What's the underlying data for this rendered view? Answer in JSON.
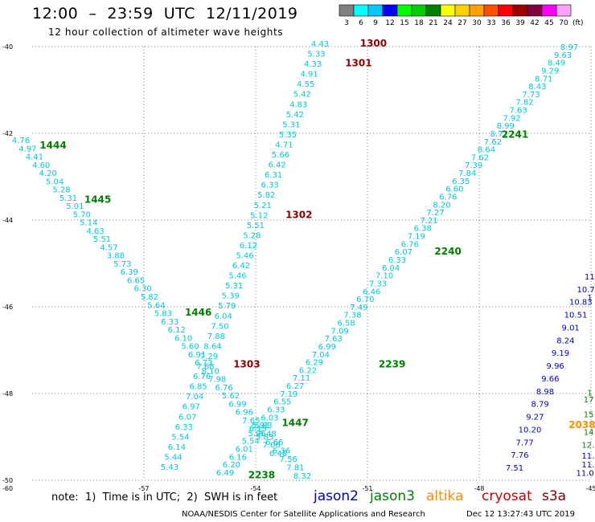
{
  "header": {
    "title": "12:00  –  23:59  UTC  12/11/2019",
    "subtitle": "12 hour collection of altimeter wave heights"
  },
  "scale": {
    "unit": "(ft)",
    "bins": [
      {
        "label": "3",
        "color": "#808080"
      },
      {
        "label": "6",
        "color": "#00ffff"
      },
      {
        "label": "9",
        "color": "#00c8ff"
      },
      {
        "label": "12",
        "color": "#0000ff"
      },
      {
        "label": "15",
        "color": "#00ff00"
      },
      {
        "label": "18",
        "color": "#00d000"
      },
      {
        "label": "21",
        "color": "#008000"
      },
      {
        "label": "24",
        "color": "#ffff00"
      },
      {
        "label": "27",
        "color": "#ffd000"
      },
      {
        "label": "30",
        "color": "#ffa000"
      },
      {
        "label": "33",
        "color": "#ff5000"
      },
      {
        "label": "36",
        "color": "#ff0000"
      },
      {
        "label": "39",
        "color": "#a00000"
      },
      {
        "label": "42",
        "color": "#800040"
      },
      {
        "label": "45",
        "color": "#ff00ff"
      },
      {
        "label": "70",
        "color": "#ffa0ff"
      }
    ]
  },
  "axes": {
    "lat_labels": [
      "-40",
      "-42",
      "-44",
      "-46",
      "-48",
      "-50"
    ],
    "lon_labels": [
      "-57",
      "-54",
      "-51",
      "-48",
      "-45"
    ],
    "corner_label": "-60"
  },
  "colors": {
    "jason2": "#0000cd",
    "jason3": "#008000",
    "altika": "#ff8c00",
    "cryosat": "#cc0000",
    "s3a": "#800000",
    "wave_cyan": "#00c8d8",
    "wave_blue": "#0000cd",
    "time_maroon": "#8b0000",
    "time_green": "#008000",
    "time_orange": "#ff8c00"
  },
  "tracks": [
    {
      "name": "track-1300-1303",
      "color": "wave_cyan",
      "start": [
        398,
        58
      ],
      "end": [
        211,
        585
      ],
      "values": [
        "4.43",
        "5.33",
        "4.33",
        "4.91",
        "4.55",
        "5.42",
        "4.83",
        "5.42",
        "5.31",
        "5.35",
        "4.71",
        "5.66",
        "6.42",
        "6.31",
        "6.33",
        "5.82",
        "5.21",
        "5.12",
        "5.51",
        "5.28",
        "6.12",
        "5.46",
        "6.42",
        "5.46",
        "5.31",
        "5.39",
        "5.79",
        "6.04",
        "7.50",
        "7.88",
        "8.64",
        "7.29",
        "7.68",
        "6.76",
        "6.85",
        "7.04",
        "6.97",
        "6.07",
        "6.33",
        "5.54",
        "6.14",
        "5.44",
        "5.43"
      ]
    },
    {
      "name": "track-1444-1447",
      "color": "wave_cyan",
      "start": [
        26,
        178
      ],
      "end": [
        346,
        568
      ],
      "values": [
        "4.76",
        "4.97",
        "4.41",
        "4.60",
        "4.20",
        "5.04",
        "5.28",
        "5.31",
        "5.01",
        "5.70",
        "5.14",
        "4.63",
        "5.51",
        "4.57",
        "3.88",
        "5.73",
        "6.39",
        "6.65",
        "6.30",
        "5.82",
        "5.64",
        "5.83",
        "6.33",
        "6.12",
        "6.10",
        "5.60",
        "6.91",
        "6.73",
        "8.10",
        "7.98",
        "6.76",
        "5.62",
        "6.99",
        "6.96",
        "7.65",
        "6.15",
        "5.83",
        "7.06",
        "6.48"
      ]
    },
    {
      "name": "track-2238-2241",
      "color": "wave_cyan",
      "start": [
        708,
        62
      ],
      "end": [
        280,
        592
      ],
      "values": [
        "8.97",
        "9.63",
        "8.49",
        "9.29",
        "8.71",
        "8.43",
        "7.73",
        "7.82",
        "7.63",
        "7.92",
        "8.99",
        "8.71",
        "7.62",
        "8.64",
        "7.62",
        "7.39",
        "7.84",
        "6.35",
        "6.60",
        "6.76",
        "8.20",
        "7.27",
        "7.21",
        "6.38",
        "7.19",
        "6.76",
        "6.07",
        "6.33",
        "6.04",
        "7.10",
        "7.33",
        "6.46",
        "6.70",
        "7.49",
        "7.38",
        "6.58",
        "7.09",
        "7.63",
        "6.99",
        "7.04",
        "6.29",
        "6.22",
        "7.11",
        "6.27",
        "7.19",
        "6.55",
        "6.33",
        "6.03",
        "5.83",
        "5.96",
        "5.54",
        "6.01",
        "6.16",
        "6.20",
        "6.49"
      ]
    },
    {
      "name": "track-1303-tail",
      "color": "wave_cyan",
      "start": [
        324,
        533
      ],
      "end": [
        376,
        596
      ],
      "values": [
        "5.93",
        "6.48",
        "6.66",
        "6.36",
        "7.56",
        "7.81",
        "8.32"
      ]
    },
    {
      "name": "track-2039",
      "color": "wave_blue",
      "start": [
        735,
        348
      ],
      "end": [
        640,
        586
      ],
      "values": [
        "11.",
        "10.7",
        "10.83",
        "10.51",
        "9.01",
        "8.24",
        "9.19",
        "9.96",
        "9.66",
        "8.98",
        "8.79",
        "9.27",
        "10.20",
        "7.77",
        "7.76",
        "7.51"
      ]
    }
  ],
  "pass_times": [
    {
      "label": "1300",
      "color": "time_maroon",
      "lon": -51.2,
      "lat": -40.0
    },
    {
      "label": "1301",
      "color": "time_maroon",
      "lon": -51.6,
      "lat": -40.45
    },
    {
      "label": "1302",
      "color": "time_maroon",
      "lon": -53.2,
      "lat": -43.95
    },
    {
      "label": "1303",
      "color": "time_maroon",
      "lon": -54.6,
      "lat": -47.4
    },
    {
      "label": "1444",
      "color": "time_green",
      "lon": -59.8,
      "lat": -42.35
    },
    {
      "label": "1445",
      "color": "time_green",
      "lon": -58.6,
      "lat": -43.6
    },
    {
      "label": "1446",
      "color": "time_green",
      "lon": -55.9,
      "lat": -46.2
    },
    {
      "label": "1447",
      "color": "time_green",
      "lon": -53.3,
      "lat": -48.75
    },
    {
      "label": "2238",
      "color": "time_green",
      "lon": -54.2,
      "lat": -49.95
    },
    {
      "label": "2239",
      "color": "time_green",
      "lon": -50.7,
      "lat": -47.4
    },
    {
      "label": "2240",
      "color": "time_green",
      "lon": -49.2,
      "lat": -44.8
    },
    {
      "label": "2241",
      "color": "time_green",
      "lon": -47.4,
      "lat": -42.1
    },
    {
      "label": "2038",
      "color": "time_orange",
      "lon": -45.6,
      "lat": -48.8
    }
  ],
  "extra_right_values": [
    {
      "text": "1",
      "color": "wave_blue",
      "lon": -45.1,
      "lat": -45.85
    },
    {
      "text": "1",
      "color": "time_green",
      "lon": -45.1,
      "lat": -48.05
    },
    {
      "text": "17",
      "color": "time_green",
      "lon": -45.2,
      "lat": -48.2
    },
    {
      "text": "15",
      "color": "time_green",
      "lon": -45.2,
      "lat": -48.55
    },
    {
      "text": "14",
      "color": "time_green",
      "lon": -45.2,
      "lat": -48.95
    },
    {
      "text": "12.",
      "color": "time_green",
      "lon": -45.25,
      "lat": -49.25
    },
    {
      "text": "11.",
      "color": "wave_blue",
      "lon": -45.25,
      "lat": -49.5
    },
    {
      "text": "11.",
      "color": "wave_blue",
      "lon": -45.25,
      "lat": -49.7
    },
    {
      "text": "11.0",
      "color": "wave_blue",
      "lon": -45.4,
      "lat": -49.9
    }
  ],
  "note": {
    "text": "note:  1)  Time is in UTC;  2)  SWH is in feet",
    "satellites": [
      {
        "label": "jason2",
        "color": "jason2"
      },
      {
        "label": "jason3",
        "color": "jason3"
      },
      {
        "label": "altika",
        "color": "altika"
      },
      {
        "label": "cryosat",
        "color": "cryosat"
      },
      {
        "label": "s3a",
        "color": "s3a"
      }
    ]
  },
  "footer": {
    "credit": "NOAA/NESDIS Center for Satellite Applications and Research",
    "timestamp": "Dec 12 13:27:43 UTC 2019"
  }
}
